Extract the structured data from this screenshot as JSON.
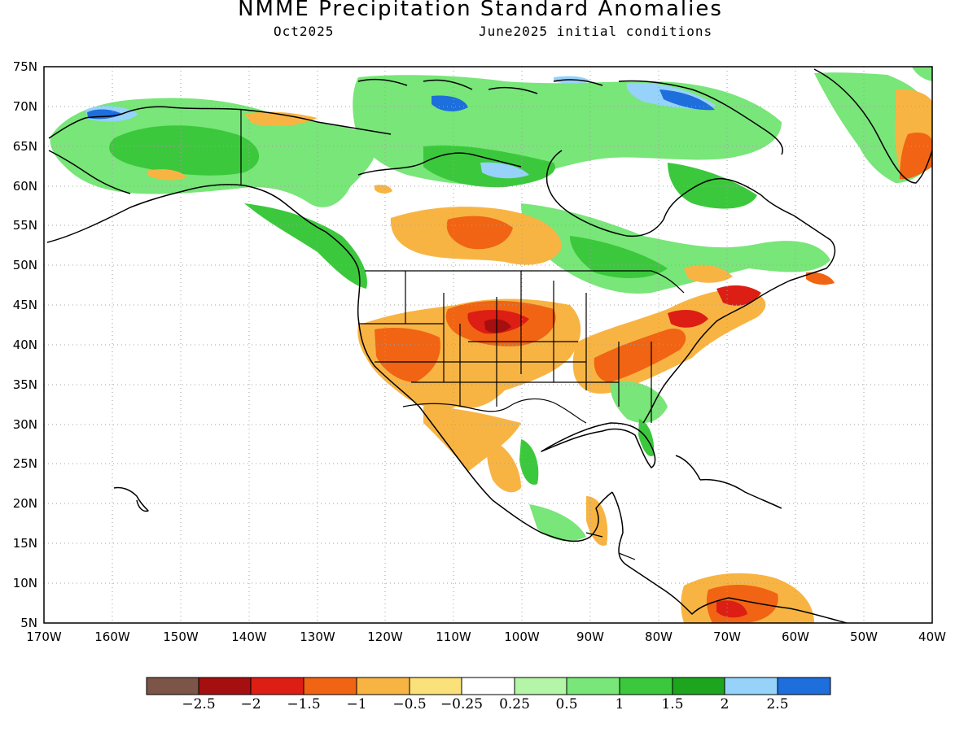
{
  "title": "NMME Precipitation Standard Anomalies",
  "subtitle_left": "Oct2025",
  "subtitle_right": "June2025 initial conditions",
  "lat_labels": [
    "75N",
    "70N",
    "65N",
    "60N",
    "55N",
    "50N",
    "45N",
    "40N",
    "35N",
    "30N",
    "25N",
    "20N",
    "15N",
    "10N",
    "5N"
  ],
  "lon_labels": [
    "170W",
    "160W",
    "150W",
    "140W",
    "130W",
    "120W",
    "110W",
    "100W",
    "90W",
    "80W",
    "70W",
    "60W",
    "50W",
    "40W"
  ],
  "colorbar": {
    "labels": [
      "−2.5",
      "−2",
      "−1.5",
      "−1",
      "−0.5",
      "−0.25",
      "0.25",
      "0.5",
      "1",
      "1.5",
      "2",
      "2.5"
    ],
    "colors": [
      "#7d5448",
      "#a50f0f",
      "#dc1e14",
      "#f06414",
      "#f8b443",
      "#fbe17a",
      "#ffffff",
      "#b4f5a8",
      "#78e678",
      "#3cc83c",
      "#1ea51e",
      "#96d2fa",
      "#1e6edc"
    ]
  },
  "colors": {
    "frame": "#000000",
    "grid": "#a0a0a0"
  }
}
